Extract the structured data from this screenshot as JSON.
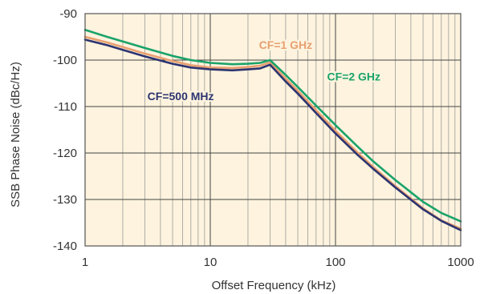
{
  "chart_data": {
    "type": "line",
    "xlabel": "Offset Frequency (kHz)",
    "ylabel": "SSB Phase Noise (dBc/Hz)",
    "x_scale": "log",
    "xlim": [
      1,
      1000
    ],
    "ylim": [
      -140,
      -90
    ],
    "x_ticks": [
      1,
      10,
      100,
      1000
    ],
    "x_tick_labels": [
      "1",
      "10",
      "100",
      "1000"
    ],
    "y_ticks": [
      -140,
      -130,
      -120,
      -110,
      -100,
      -90
    ],
    "y_tick_labels": [
      "-140",
      "-130",
      "-120",
      "-110",
      "-100",
      "-90"
    ],
    "grid": true,
    "background": "#fdf3de",
    "series": [
      {
        "name": "CF=1 GHz",
        "color": "#e8a070",
        "label_color": "#e8a070",
        "x": [
          1,
          1.5,
          2,
          3,
          5,
          7,
          10,
          15,
          20,
          25,
          30,
          40,
          50,
          70,
          100,
          150,
          200,
          300,
          500,
          700,
          1000
        ],
        "y": [
          -95,
          -96.2,
          -97.2,
          -98.6,
          -100.2,
          -101.1,
          -101.6,
          -101.7,
          -101.5,
          -101.2,
          -100.5,
          -104.0,
          -106.6,
          -110.8,
          -115.2,
          -119.9,
          -123.0,
          -127.1,
          -131.9,
          -134.5,
          -136.3
        ]
      },
      {
        "name": "CF=500 MHz",
        "color": "#2c3470",
        "label_color": "#2c3470",
        "x": [
          1,
          1.5,
          2,
          3,
          5,
          7,
          10,
          15,
          20,
          25,
          30,
          40,
          50,
          70,
          100,
          150,
          200,
          300,
          500,
          700,
          1000
        ],
        "y": [
          -95.6,
          -96.8,
          -97.8,
          -99.2,
          -100.8,
          -101.6,
          -102.0,
          -102.2,
          -102.0,
          -101.8,
          -101.0,
          -104.6,
          -107.2,
          -111.4,
          -115.8,
          -120.4,
          -123.4,
          -127.4,
          -132.1,
          -134.6,
          -136.6
        ]
      },
      {
        "name": "CF=2 GHz",
        "color": "#1aa36a",
        "label_color": "#1aa36a",
        "x": [
          1,
          1.5,
          2,
          3,
          5,
          7,
          10,
          15,
          20,
          25,
          30,
          40,
          50,
          70,
          100,
          150,
          200,
          300,
          500,
          700,
          1000
        ],
        "y": [
          -93.5,
          -95.0,
          -96.0,
          -97.4,
          -99.1,
          -100.0,
          -100.6,
          -100.9,
          -100.8,
          -100.6,
          -100.0,
          -103.2,
          -105.8,
          -109.8,
          -114.0,
          -118.6,
          -121.8,
          -125.8,
          -130.5,
          -132.9,
          -134.7
        ]
      }
    ],
    "annotations": [
      {
        "text": "CF=1 GHz",
        "series": "CF=1 GHz",
        "x": 40,
        "y": -97.6
      },
      {
        "text": "CF=2 GHz",
        "series": "CF=2 GHz",
        "x": 140,
        "y": -104.4
      },
      {
        "text": "CF=500 MHz",
        "series": "CF=500 MHz",
        "x": 5.8,
        "y": -108.6
      }
    ]
  }
}
